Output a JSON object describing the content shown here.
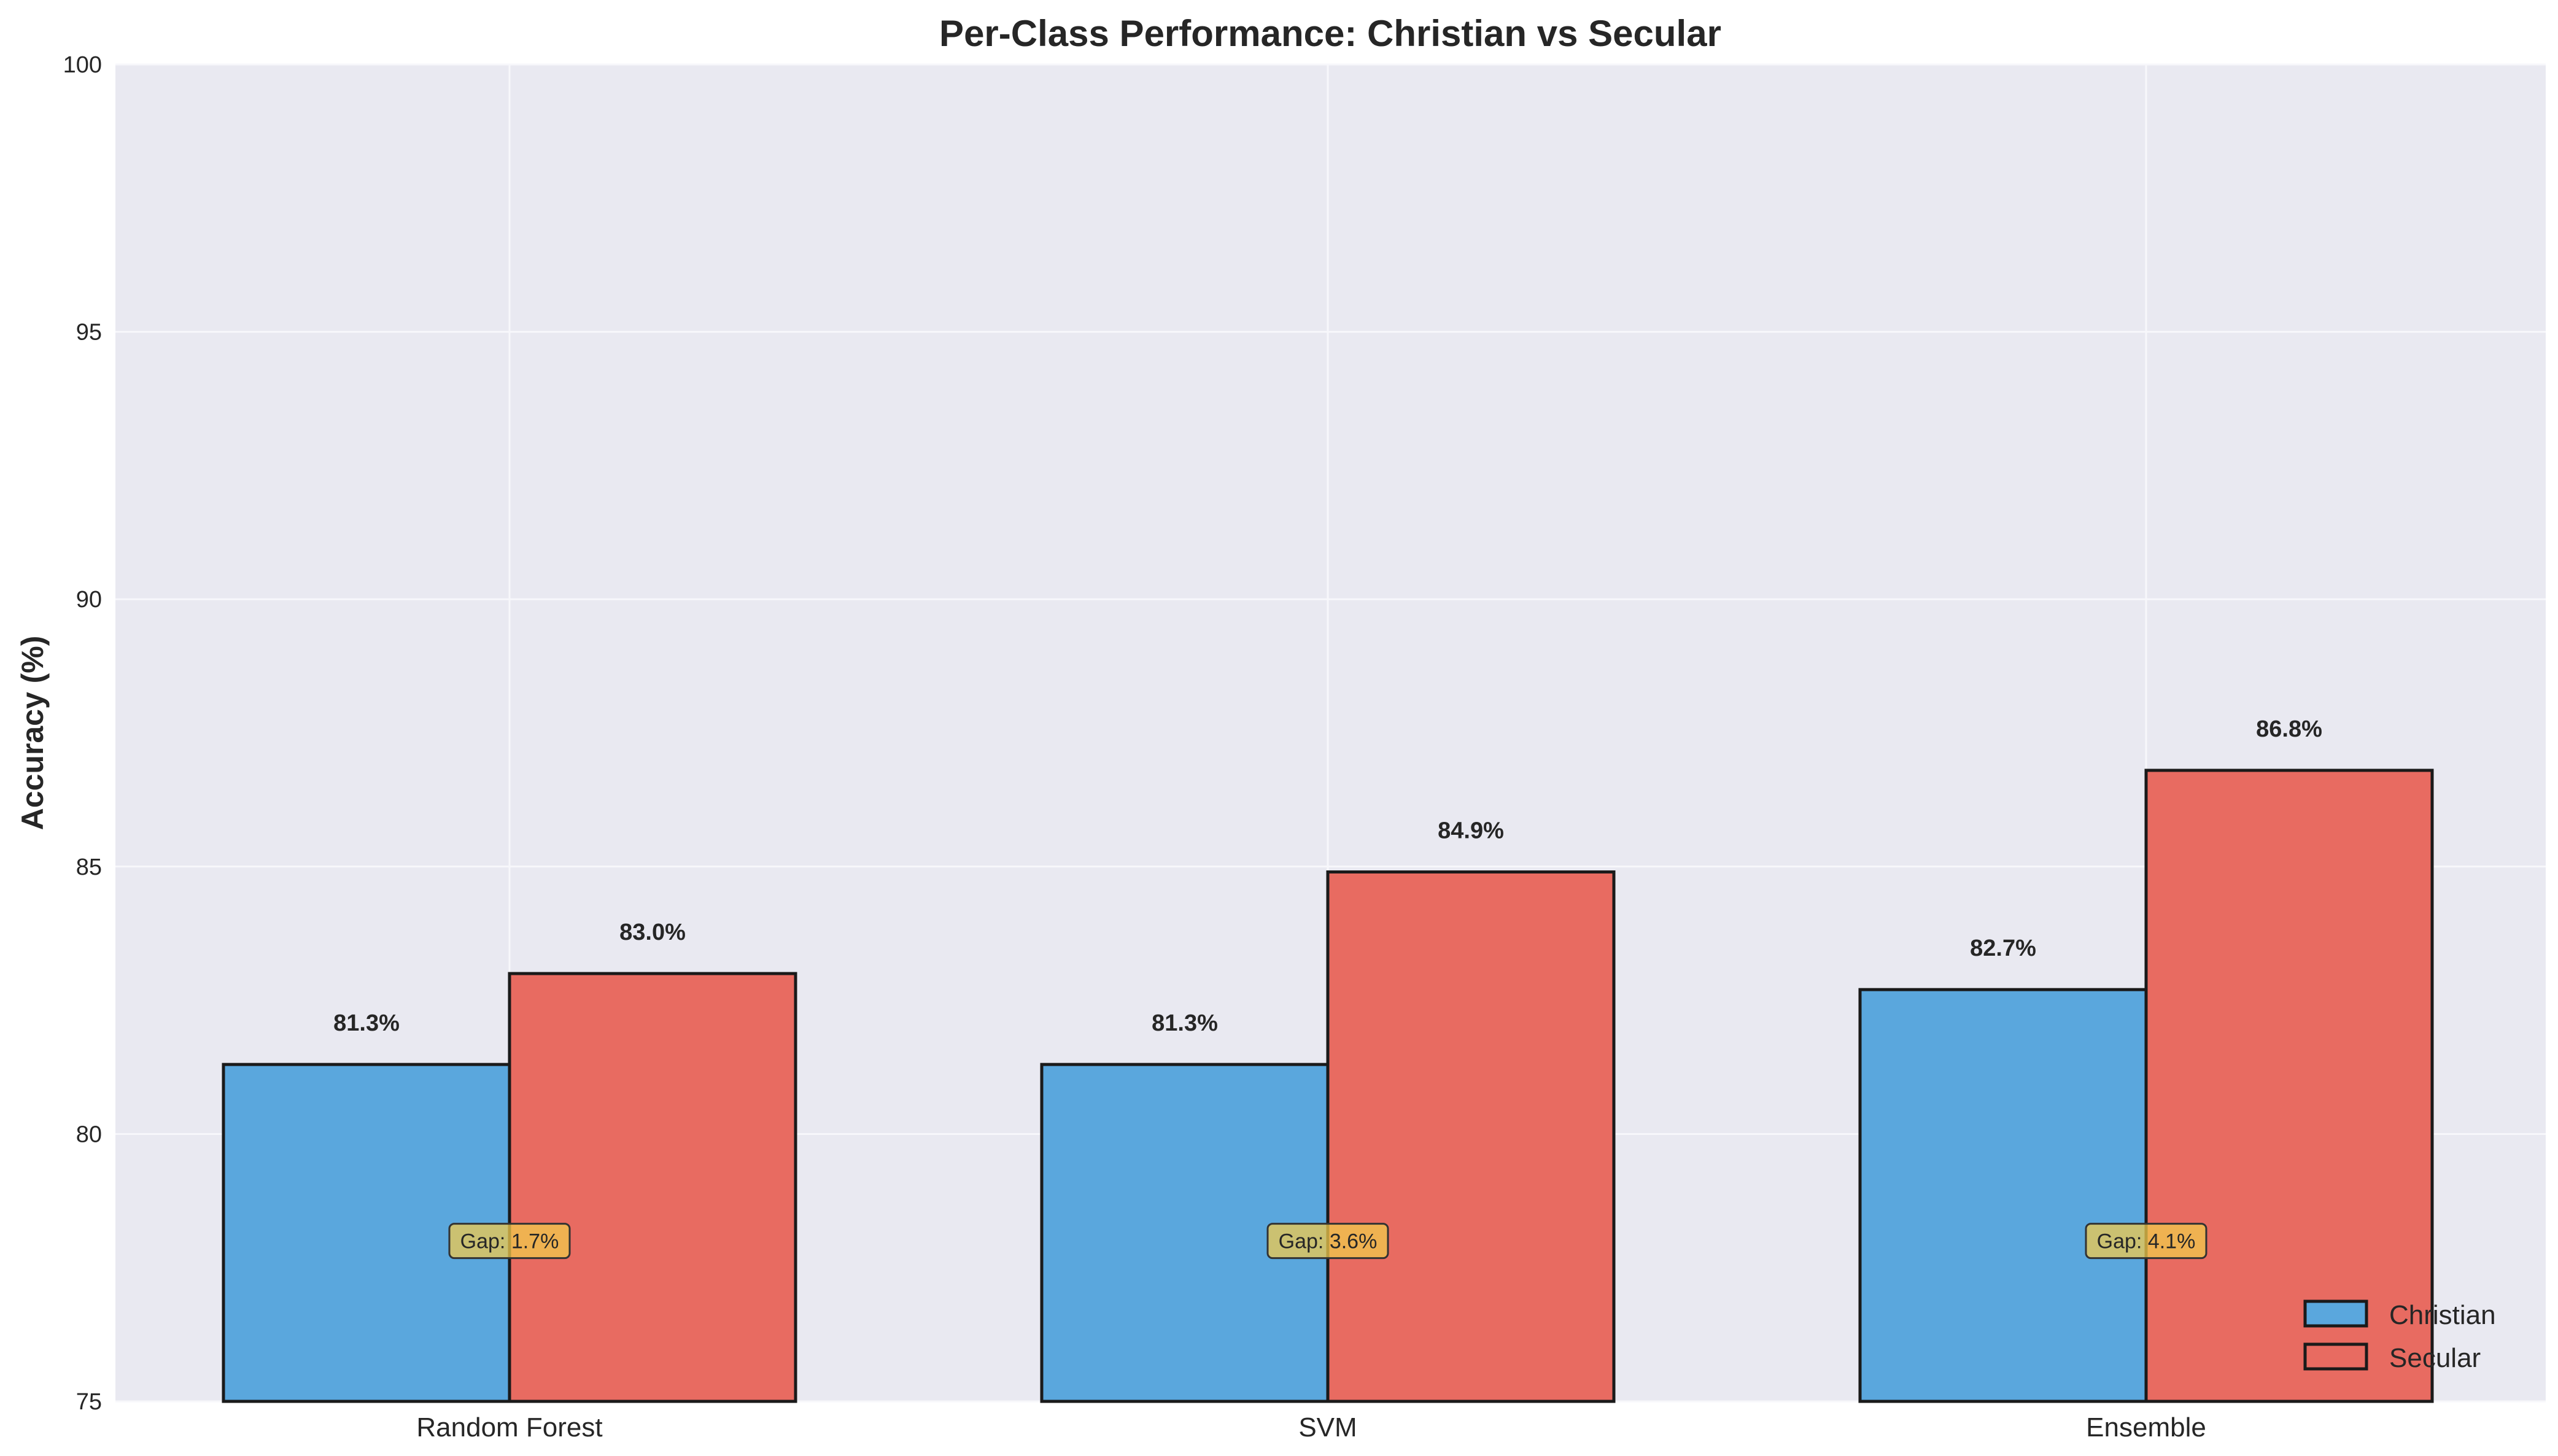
{
  "chart_data": {
    "type": "bar",
    "title": "Per-Class Performance: Christian vs Secular",
    "xlabel": "",
    "ylabel": "Accuracy (%)",
    "ylim": [
      75,
      100
    ],
    "yticks": [
      75,
      80,
      85,
      90,
      95,
      100
    ],
    "categories": [
      "Random Forest",
      "SVM",
      "Ensemble"
    ],
    "series": [
      {
        "name": "Christian",
        "values": [
          81.3,
          81.3,
          82.7
        ],
        "labels": [
          "81.3%",
          "81.3%",
          "82.7%"
        ],
        "color": "#5aa7dd"
      },
      {
        "name": "Secular",
        "values": [
          83.0,
          84.9,
          86.8
        ],
        "labels": [
          "83.0%",
          "84.9%",
          "86.8%"
        ],
        "color": "#e86b61"
      }
    ],
    "annotations": [
      "Gap: 1.7%",
      "Gap: 3.6%",
      "Gap: 4.1%"
    ],
    "annotation_value": 78,
    "annotation_color": "#f2c94c",
    "grid": true,
    "legend": "bottom-right",
    "background": "#e9e9f1"
  }
}
